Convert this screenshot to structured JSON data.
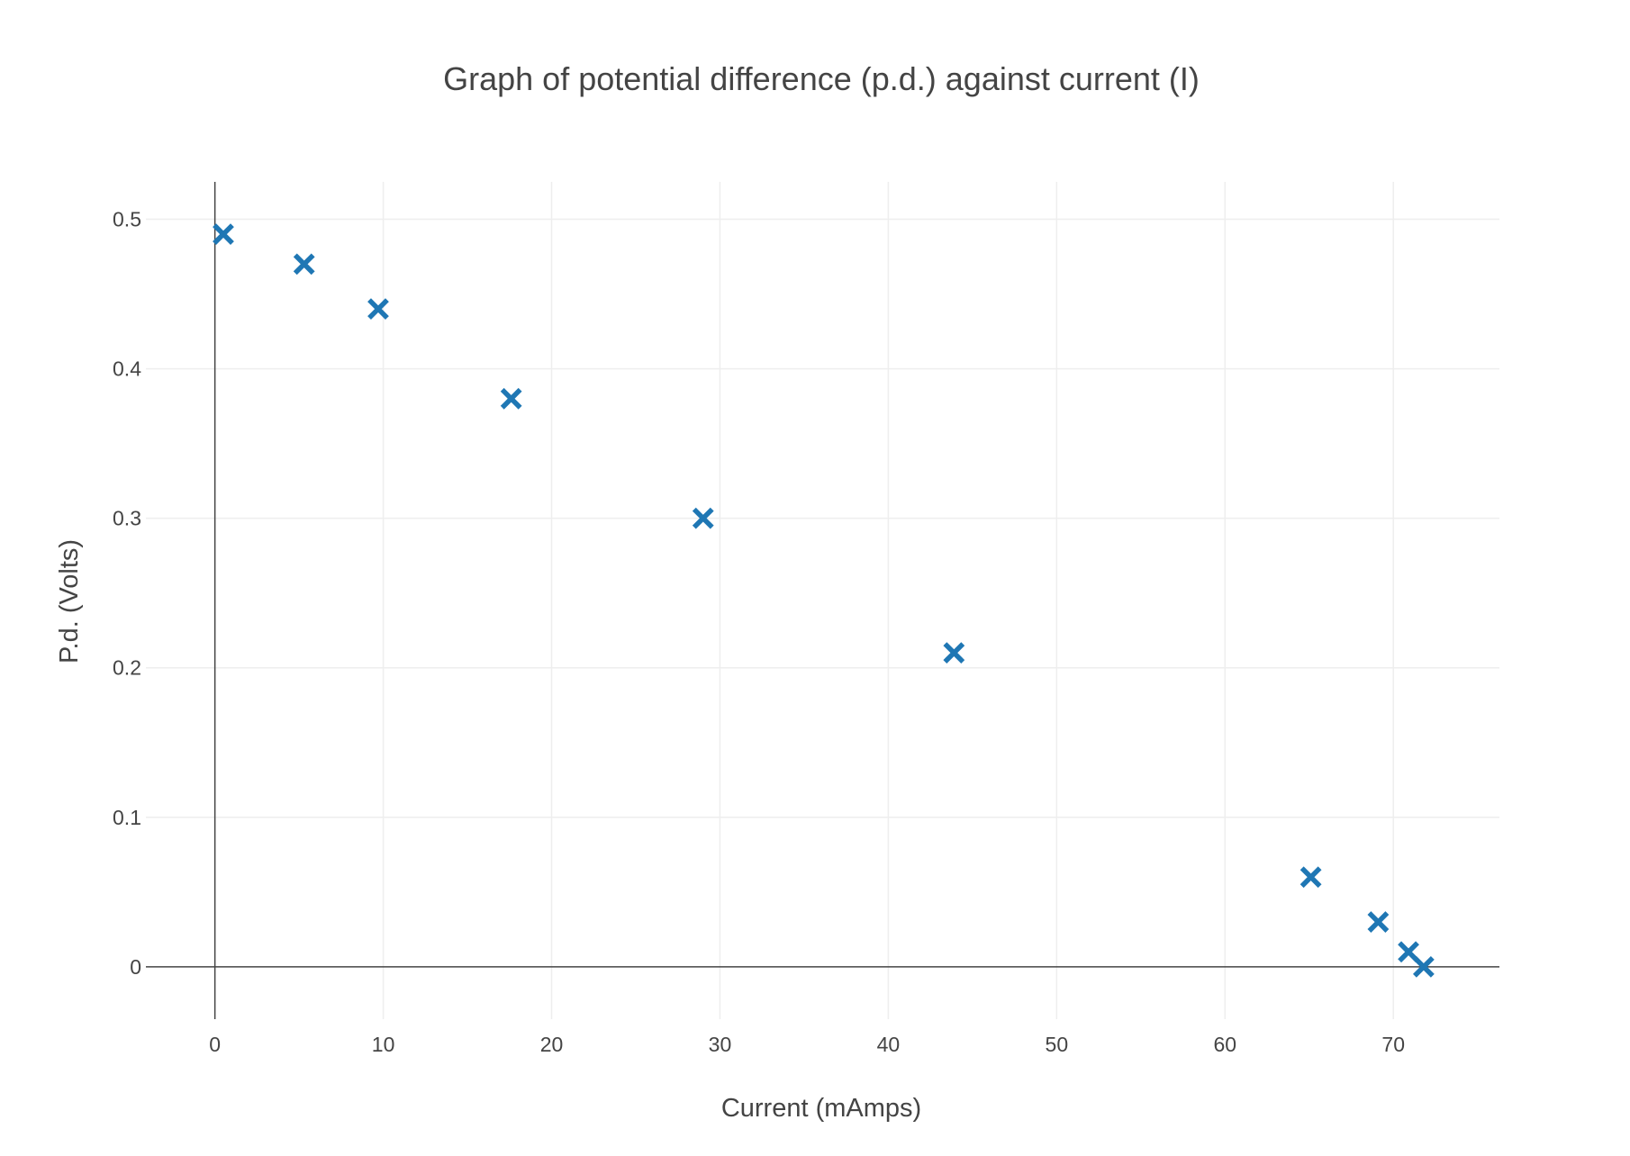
{
  "chart_data": {
    "type": "scatter",
    "title": "Graph of potential difference (p.d.) against current (I)",
    "xlabel": "Current (mAmps)",
    "ylabel": "P.d. (Volts)",
    "xlim": [
      -4.1,
      76.3
    ],
    "ylim": [
      -0.035,
      0.525
    ],
    "xticks": [
      0,
      10,
      20,
      30,
      40,
      50,
      60,
      70
    ],
    "yticks": [
      0,
      0.1,
      0.2,
      0.3,
      0.4,
      0.5
    ],
    "xtick_labels": [
      "0",
      "10",
      "20",
      "30",
      "40",
      "50",
      "60",
      "70"
    ],
    "ytick_labels": [
      "0",
      "0.1",
      "0.2",
      "0.3",
      "0.4",
      "0.5"
    ],
    "grid": true,
    "marker": "x",
    "series": [
      {
        "color": "#1f77b4",
        "x": [
          0.5,
          5.3,
          9.7,
          17.6,
          29.0,
          43.9,
          65.1,
          69.1,
          70.9,
          71.8
        ],
        "y": [
          0.49,
          0.47,
          0.44,
          0.38,
          0.3,
          0.21,
          0.06,
          0.03,
          0.01,
          0.0
        ]
      }
    ]
  }
}
